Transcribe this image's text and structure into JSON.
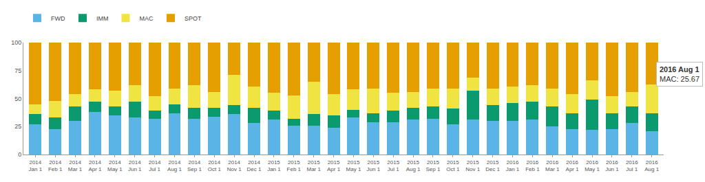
{
  "chart_data": {
    "type": "bar",
    "stacked": true,
    "grid": false,
    "legend": "top-left",
    "categories": [
      "2014 Jan 1",
      "2014 Feb 1",
      "2014 Mar 1",
      "2014 Apr 1",
      "2014 May 1",
      "2014 Jun 1",
      "2014 Jul 1",
      "2014 Aug 1",
      "2014 Sep 1",
      "2014 Oct 1",
      "2014 Nov 1",
      "2014 Dec 1",
      "2015 Jan 1",
      "2015 Feb 1",
      "2015 Mar 1",
      "2015 Apr 1",
      "2015 May 1",
      "2015 Jun 1",
      "2015 Jul 1",
      "2015 Aug 1",
      "2015 Sep 1",
      "2015 Oct 1",
      "2015 Nov 1",
      "2015 Dec 1",
      "2016 Jan 1",
      "2016 Feb 1",
      "2016 Mar 1",
      "2016 Apr 1",
      "2016 May 1",
      "2016 Jun 1",
      "2016 Jul 1",
      "2016 Aug 1"
    ],
    "series": [
      {
        "name": "FWD",
        "color": "#5ab4e6",
        "values": [
          27,
          23,
          30,
          38,
          35,
          33,
          32,
          37,
          32,
          34,
          36,
          28,
          31,
          26,
          26,
          24,
          33,
          29,
          29,
          31,
          32,
          27,
          31,
          30,
          30,
          31,
          25,
          23,
          22,
          23,
          28,
          21
        ]
      },
      {
        "name": "IMM",
        "color": "#0a9a6e",
        "values": [
          9,
          10,
          13,
          9,
          8,
          14,
          7,
          8,
          10,
          8,
          8,
          14,
          8,
          6,
          10,
          11,
          7,
          8,
          10,
          11,
          11,
          14,
          26,
          14,
          16,
          16,
          18,
          14,
          27,
          14,
          15,
          16
        ]
      },
      {
        "name": "MAC",
        "color": "#f0e442",
        "values": [
          9,
          15,
          11,
          11,
          14,
          15,
          13,
          14,
          20,
          14,
          27,
          19,
          16,
          21,
          29,
          19,
          18,
          22,
          16,
          14,
          16,
          18,
          12,
          15,
          15,
          15,
          16,
          17,
          17,
          15,
          13,
          25.67
        ]
      },
      {
        "name": "SPOT",
        "color": "#e69f00",
        "values": [
          55,
          52,
          46,
          42,
          43,
          38,
          48,
          41,
          38,
          44,
          29,
          39,
          45,
          47,
          35,
          46,
          42,
          41,
          45,
          44,
          41,
          41,
          31,
          41,
          39,
          38,
          41,
          46,
          34,
          48,
          44,
          37.33
        ]
      }
    ],
    "ylim": [
      0,
      100
    ],
    "yticks": [
      0,
      25,
      50,
      75,
      100
    ],
    "annotation": {
      "title": "2016 Aug 1",
      "text": "MAC: 25.67"
    }
  }
}
